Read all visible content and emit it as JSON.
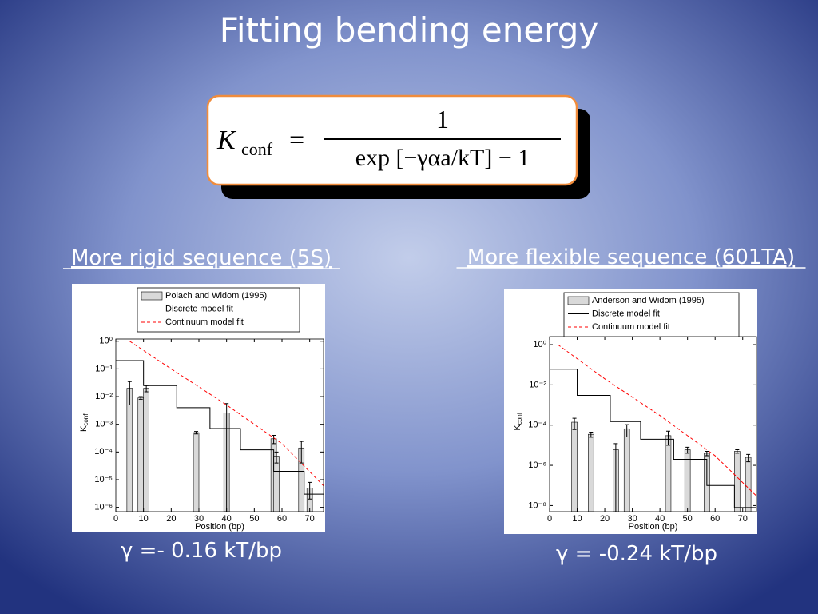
{
  "title": "Fitting bending energy",
  "formula": {
    "lhs": "K",
    "lhs_sub": "conf",
    "equals": "=",
    "numerator": "1",
    "denominator": "exp [−γαa/kT] − 1"
  },
  "chart_data": [
    {
      "type": "bar",
      "title": "More rigid sequence (5S)",
      "caption": "γ =- 0.16 kT/bp",
      "xlabel": "Position (bp)",
      "ylabel": "K",
      "ylabel_sub": "conf",
      "log_y": true,
      "xlim": [
        0,
        75
      ],
      "xticks": [
        0,
        10,
        20,
        30,
        40,
        50,
        60,
        70
      ],
      "ylim": [
        7e-07,
        1.2
      ],
      "yticks": [
        {
          "value": 1,
          "label": "10⁰"
        },
        {
          "value": 0.1,
          "label": "10⁻¹"
        },
        {
          "value": 0.01,
          "label": "10⁻²"
        },
        {
          "value": 0.001,
          "label": "10⁻³"
        },
        {
          "value": 0.0001,
          "label": "10⁻⁴"
        },
        {
          "value": 1e-05,
          "label": "10⁻⁵"
        },
        {
          "value": 1e-06,
          "label": "10⁻⁶"
        }
      ],
      "series": [
        {
          "name": "Polach and Widom (1995)",
          "kind": "bar",
          "color": "#d9d9d9",
          "x": [
            5,
            9,
            11,
            29,
            40,
            57,
            58,
            67,
            70
          ],
          "values": [
            0.02,
            0.009,
            0.02,
            0.0005,
            0.0026,
            0.0003,
            7e-05,
            0.00014,
            5e-06
          ],
          "errors": [
            0.015,
            0.001,
            0.005,
            5e-05,
            0.003,
            0.0001,
            3e-05,
            0.0001,
            3e-06
          ]
        },
        {
          "name": "Discrete model fit",
          "kind": "step",
          "color": "#000000",
          "x": [
            0,
            10,
            22,
            34,
            45,
            57,
            68,
            75
          ],
          "values": [
            0.2,
            0.025,
            0.004,
            0.0007,
            0.00012,
            2e-05,
            3e-06,
            3e-06
          ]
        },
        {
          "name": "Continuum model fit",
          "kind": "dashed",
          "color": "#ff0000",
          "x": [
            5,
            20,
            40,
            60,
            75
          ],
          "values": [
            1,
            0.1,
            0.005,
            0.0002,
            6e-06
          ]
        }
      ]
    },
    {
      "type": "bar",
      "title": "More flexible sequence (601TA)",
      "caption": "γ = -0.24 kT/bp",
      "xlabel": "Position (bp)",
      "ylabel": "K",
      "ylabel_sub": "conf",
      "log_y": true,
      "xlim": [
        0,
        75
      ],
      "xticks": [
        0,
        10,
        20,
        30,
        40,
        50,
        60,
        70
      ],
      "ylim": [
        5e-09,
        2.5
      ],
      "yticks": [
        {
          "value": 1,
          "label": "10⁰"
        },
        {
          "value": 0.01,
          "label": "10⁻²"
        },
        {
          "value": 0.0001,
          "label": "10⁻⁴"
        },
        {
          "value": 1e-06,
          "label": "10⁻⁶"
        },
        {
          "value": 1e-08,
          "label": "10⁻⁸"
        }
      ],
      "series": [
        {
          "name": "Anderson and Widom (1995)",
          "kind": "bar",
          "color": "#d9d9d9",
          "x": [
            9,
            15,
            24,
            28,
            43,
            50,
            57,
            68,
            72
          ],
          "values": [
            0.00014,
            3.5e-05,
            6e-06,
            6.6e-05,
            3e-05,
            6e-06,
            4e-06,
            5e-06,
            2.5e-06
          ],
          "errors": [
            8e-05,
            1e-05,
            6e-06,
            4e-05,
            2e-05,
            2e-06,
            1e-06,
            1e-06,
            1e-06
          ]
        },
        {
          "name": "Discrete model fit",
          "kind": "step",
          "color": "#000000",
          "x": [
            0,
            10,
            22,
            33,
            45,
            57,
            67,
            75
          ],
          "values": [
            0.06,
            0.003,
            0.00015,
            2e-05,
            2e-06,
            1e-07,
            8e-09,
            8e-09
          ]
        },
        {
          "name": "Continuum model fit",
          "kind": "dashed",
          "color": "#ff0000",
          "x": [
            3,
            20,
            40,
            60,
            75
          ],
          "values": [
            1,
            0.02,
            0.0003,
            3e-06,
            3e-08
          ]
        }
      ]
    }
  ]
}
